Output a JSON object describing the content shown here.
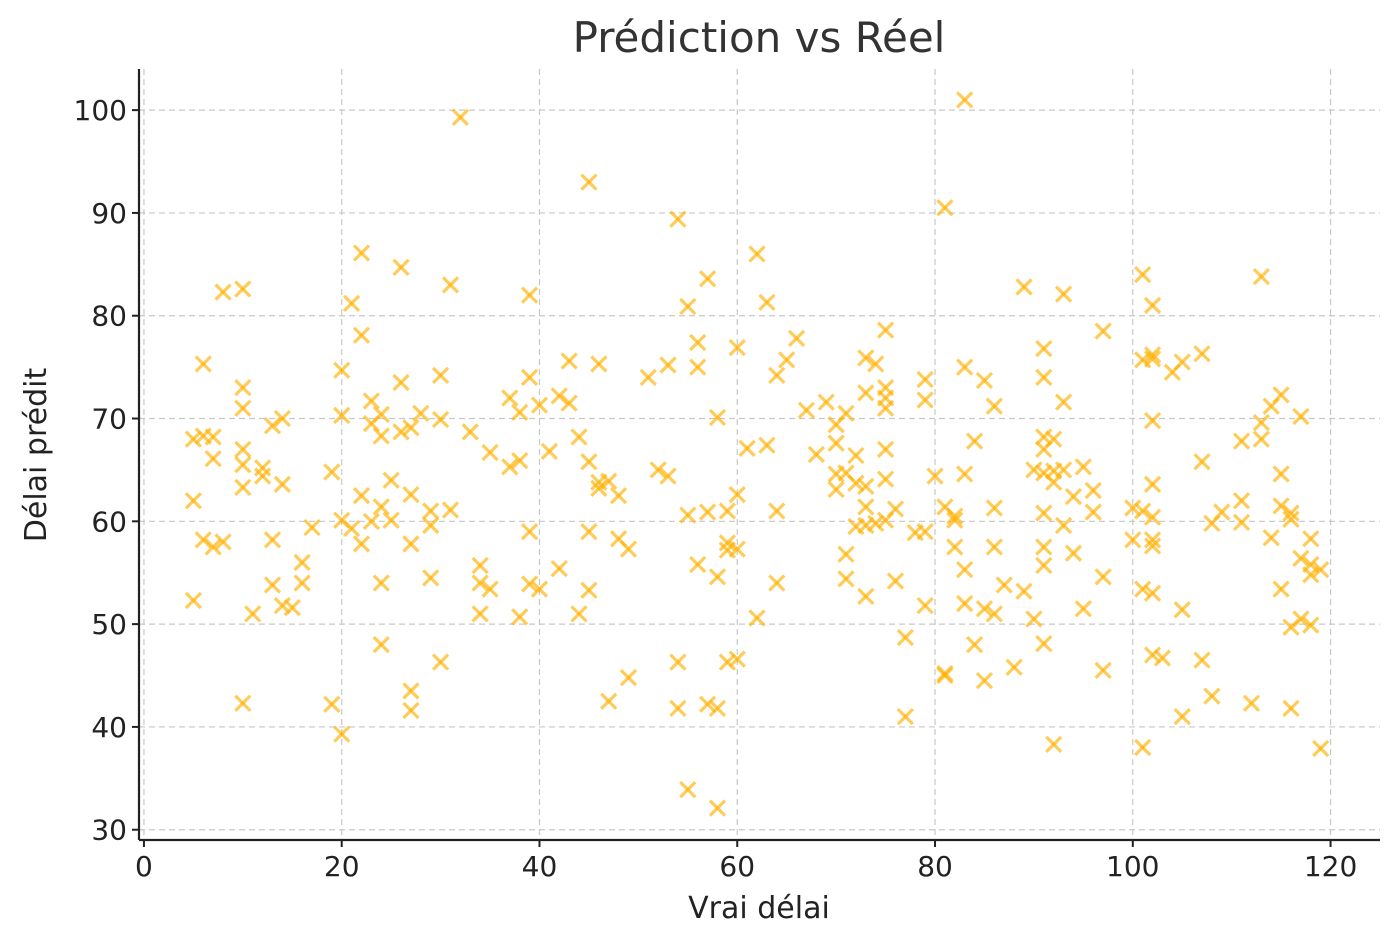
{
  "chart_data": {
    "type": "scatter",
    "title": "Prédiction vs Réel",
    "xlabel": "Vrai délai",
    "ylabel": "Délai prédit",
    "xlim": [
      -0.5,
      125
    ],
    "ylim": [
      29,
      104
    ],
    "xticks": [
      0,
      20,
      40,
      60,
      80,
      100,
      120
    ],
    "yticks": [
      30,
      40,
      50,
      60,
      70,
      80,
      90,
      100
    ],
    "grid": true,
    "marker": "x",
    "color": "#FFB000",
    "points": [
      [
        5,
        68
      ],
      [
        5,
        62
      ],
      [
        5,
        52.3
      ],
      [
        6,
        68.3
      ],
      [
        6,
        75.3
      ],
      [
        6,
        58.2
      ],
      [
        7,
        68.2
      ],
      [
        7,
        66.1
      ],
      [
        7,
        57.5
      ],
      [
        8,
        82.3
      ],
      [
        8,
        58
      ],
      [
        10,
        82.6
      ],
      [
        10,
        73
      ],
      [
        10,
        71
      ],
      [
        10,
        67
      ],
      [
        10,
        65.5
      ],
      [
        10,
        63.3
      ],
      [
        10,
        42.3
      ],
      [
        11,
        51
      ],
      [
        12,
        65.2
      ],
      [
        12,
        64.4
      ],
      [
        13,
        69.3
      ],
      [
        13,
        58.2
      ],
      [
        13,
        53.8
      ],
      [
        14,
        70
      ],
      [
        14,
        63.6
      ],
      [
        14,
        51.8
      ],
      [
        15,
        51.6
      ],
      [
        16,
        56
      ],
      [
        16,
        54
      ],
      [
        17,
        59.4
      ],
      [
        19,
        64.8
      ],
      [
        19,
        42.2
      ],
      [
        20,
        74.7
      ],
      [
        20,
        70.3
      ],
      [
        20,
        60.1
      ],
      [
        20,
        39.3
      ],
      [
        21,
        81.2
      ],
      [
        21,
        59.3
      ],
      [
        22,
        86.1
      ],
      [
        22,
        78.1
      ],
      [
        22,
        62.5
      ],
      [
        22,
        57.8
      ],
      [
        23,
        71.7
      ],
      [
        23,
        69.5
      ],
      [
        23,
        60
      ],
      [
        24,
        70.4
      ],
      [
        24,
        68.3
      ],
      [
        24,
        61.4
      ],
      [
        24,
        54
      ],
      [
        24,
        48
      ],
      [
        25,
        64
      ],
      [
        25,
        60.1
      ],
      [
        26,
        84.7
      ],
      [
        26,
        73.5
      ],
      [
        26,
        68.7
      ],
      [
        27,
        69.1
      ],
      [
        27,
        62.6
      ],
      [
        27,
        57.8
      ],
      [
        27,
        43.5
      ],
      [
        27,
        41.6
      ],
      [
        28,
        70.5
      ],
      [
        29,
        61
      ],
      [
        29,
        59.6
      ],
      [
        29,
        54.5
      ],
      [
        30,
        74.2
      ],
      [
        30,
        69.9
      ],
      [
        30,
        46.3
      ],
      [
        31,
        83
      ],
      [
        31,
        61.1
      ],
      [
        32,
        99.3
      ],
      [
        33,
        68.7
      ],
      [
        34,
        55.7
      ],
      [
        34,
        54
      ],
      [
        34,
        51
      ],
      [
        35,
        66.7
      ],
      [
        35,
        53.4
      ],
      [
        37,
        72
      ],
      [
        37,
        65.3
      ],
      [
        38,
        70.6
      ],
      [
        38,
        65.9
      ],
      [
        38,
        50.7
      ],
      [
        39,
        82
      ],
      [
        39,
        74
      ],
      [
        39,
        59
      ],
      [
        39,
        53.9
      ],
      [
        40,
        71.3
      ],
      [
        40,
        53.4
      ],
      [
        41,
        66.8
      ],
      [
        42,
        72.2
      ],
      [
        42,
        55.4
      ],
      [
        43,
        75.6
      ],
      [
        43,
        71.5
      ],
      [
        44,
        68.2
      ],
      [
        44,
        51
      ],
      [
        45,
        93
      ],
      [
        45,
        65.8
      ],
      [
        45,
        59
      ],
      [
        45,
        53.3
      ],
      [
        46,
        75.3
      ],
      [
        46,
        63.8
      ],
      [
        46,
        63.2
      ],
      [
        47,
        63.9
      ],
      [
        47,
        42.5
      ],
      [
        48,
        62.5
      ],
      [
        48,
        58.3
      ],
      [
        49,
        57.3
      ],
      [
        49,
        44.8
      ],
      [
        51,
        74
      ],
      [
        52,
        65
      ],
      [
        53,
        75.2
      ],
      [
        53,
        64.4
      ],
      [
        54,
        89.4
      ],
      [
        54,
        46.3
      ],
      [
        54,
        41.8
      ],
      [
        55,
        80.9
      ],
      [
        55,
        60.6
      ],
      [
        55,
        33.9
      ],
      [
        56,
        77.4
      ],
      [
        56,
        75
      ],
      [
        56,
        55.8
      ],
      [
        57,
        83.6
      ],
      [
        57,
        60.9
      ],
      [
        57,
        42.2
      ],
      [
        58,
        70.1
      ],
      [
        58,
        54.6
      ],
      [
        58,
        41.8
      ],
      [
        58,
        32.1
      ],
      [
        59,
        61
      ],
      [
        59,
        57.9
      ],
      [
        59,
        57.2
      ],
      [
        59,
        46.3
      ],
      [
        60,
        76.9
      ],
      [
        60,
        62.6
      ],
      [
        60,
        57.3
      ],
      [
        60,
        46.6
      ],
      [
        61,
        67.1
      ],
      [
        62,
        86
      ],
      [
        62,
        50.6
      ],
      [
        63,
        81.3
      ],
      [
        63,
        67.4
      ],
      [
        64,
        74.2
      ],
      [
        64,
        61
      ],
      [
        64,
        54
      ],
      [
        65,
        75.7
      ],
      [
        66,
        77.8
      ],
      [
        67,
        70.8
      ],
      [
        68,
        66.5
      ],
      [
        69,
        71.6
      ],
      [
        70,
        69.4
      ],
      [
        70,
        67.6
      ],
      [
        70,
        64.6
      ],
      [
        70,
        63.1
      ],
      [
        71,
        70.5
      ],
      [
        71,
        64.7
      ],
      [
        71,
        56.8
      ],
      [
        71,
        54.4
      ],
      [
        72,
        66.4
      ],
      [
        72,
        63.7
      ],
      [
        72,
        59.5
      ],
      [
        73,
        75.9
      ],
      [
        73,
        72.5
      ],
      [
        73,
        63.4
      ],
      [
        73,
        61.4
      ],
      [
        73,
        59.6
      ],
      [
        73,
        52.7
      ],
      [
        74,
        75.3
      ],
      [
        74,
        59.8
      ],
      [
        75,
        78.6
      ],
      [
        75,
        73
      ],
      [
        75,
        72
      ],
      [
        75,
        71
      ],
      [
        75,
        67
      ],
      [
        75,
        64.1
      ],
      [
        75,
        60.1
      ],
      [
        76,
        61.2
      ],
      [
        76,
        54.2
      ],
      [
        77,
        48.7
      ],
      [
        77,
        41
      ],
      [
        78,
        58.9
      ],
      [
        79,
        73.8
      ],
      [
        79,
        71.8
      ],
      [
        79,
        59
      ],
      [
        79,
        51.8
      ],
      [
        80,
        64.4
      ],
      [
        81,
        90.5
      ],
      [
        81,
        61.4
      ],
      [
        81,
        45.2
      ],
      [
        81,
        45
      ],
      [
        82,
        60.5
      ],
      [
        82,
        60.1
      ],
      [
        82,
        57.5
      ],
      [
        83,
        101
      ],
      [
        83,
        75
      ],
      [
        83,
        64.6
      ],
      [
        83,
        55.3
      ],
      [
        83,
        52
      ],
      [
        84,
        67.8
      ],
      [
        84,
        48
      ],
      [
        85,
        73.7
      ],
      [
        85,
        51.5
      ],
      [
        85,
        44.5
      ],
      [
        86,
        71.2
      ],
      [
        86,
        61.3
      ],
      [
        86,
        57.5
      ],
      [
        86,
        51
      ],
      [
        87,
        53.8
      ],
      [
        88,
        45.8
      ],
      [
        89,
        82.8
      ],
      [
        89,
        53.2
      ],
      [
        90,
        65
      ],
      [
        90,
        50.5
      ],
      [
        91,
        76.8
      ],
      [
        91,
        74
      ],
      [
        91,
        68.2
      ],
      [
        91,
        67
      ],
      [
        91,
        64.7
      ],
      [
        91,
        60.8
      ],
      [
        91,
        57.5
      ],
      [
        91,
        55.7
      ],
      [
        91,
        48.1
      ],
      [
        92,
        68
      ],
      [
        92,
        64.9
      ],
      [
        92,
        63.8
      ],
      [
        92,
        38.3
      ],
      [
        93,
        82.1
      ],
      [
        93,
        71.6
      ],
      [
        93,
        65
      ],
      [
        93,
        59.6
      ],
      [
        94,
        62.4
      ],
      [
        94,
        56.9
      ],
      [
        95,
        65.3
      ],
      [
        95,
        51.5
      ],
      [
        96,
        63
      ],
      [
        96,
        60.9
      ],
      [
        97,
        78.5
      ],
      [
        97,
        54.6
      ],
      [
        97,
        45.5
      ],
      [
        100,
        61.3
      ],
      [
        100,
        58.2
      ],
      [
        101,
        84
      ],
      [
        101,
        75.7
      ],
      [
        101,
        61
      ],
      [
        101,
        53.4
      ],
      [
        101,
        38
      ],
      [
        102,
        81
      ],
      [
        102,
        76.2
      ],
      [
        102,
        75.8
      ],
      [
        102,
        69.8
      ],
      [
        102,
        63.6
      ],
      [
        102,
        60.4
      ],
      [
        102,
        58.2
      ],
      [
        102,
        57.6
      ],
      [
        102,
        53
      ],
      [
        102,
        47
      ],
      [
        103,
        46.7
      ],
      [
        104,
        74.5
      ],
      [
        105,
        75.5
      ],
      [
        105,
        51.4
      ],
      [
        105,
        41
      ],
      [
        107,
        76.3
      ],
      [
        107,
        65.8
      ],
      [
        107,
        46.5
      ],
      [
        108,
        59.8
      ],
      [
        108,
        43
      ],
      [
        109,
        60.9
      ],
      [
        111,
        67.8
      ],
      [
        111,
        62
      ],
      [
        111,
        59.9
      ],
      [
        112,
        42.3
      ],
      [
        113,
        83.8
      ],
      [
        113,
        69.6
      ],
      [
        113,
        68
      ],
      [
        114,
        71.2
      ],
      [
        114,
        58.4
      ],
      [
        115,
        72.3
      ],
      [
        115,
        64.6
      ],
      [
        115,
        61.5
      ],
      [
        115,
        53.4
      ],
      [
        116,
        60.8
      ],
      [
        116,
        60.2
      ],
      [
        116,
        49.7
      ],
      [
        116,
        41.8
      ],
      [
        117,
        70.2
      ],
      [
        117,
        56.4
      ],
      [
        117,
        50.5
      ],
      [
        118,
        58.3
      ],
      [
        118,
        55.8
      ],
      [
        118,
        54.8
      ],
      [
        118,
        49.9
      ],
      [
        119,
        55.3
      ],
      [
        119,
        37.9
      ]
    ]
  }
}
